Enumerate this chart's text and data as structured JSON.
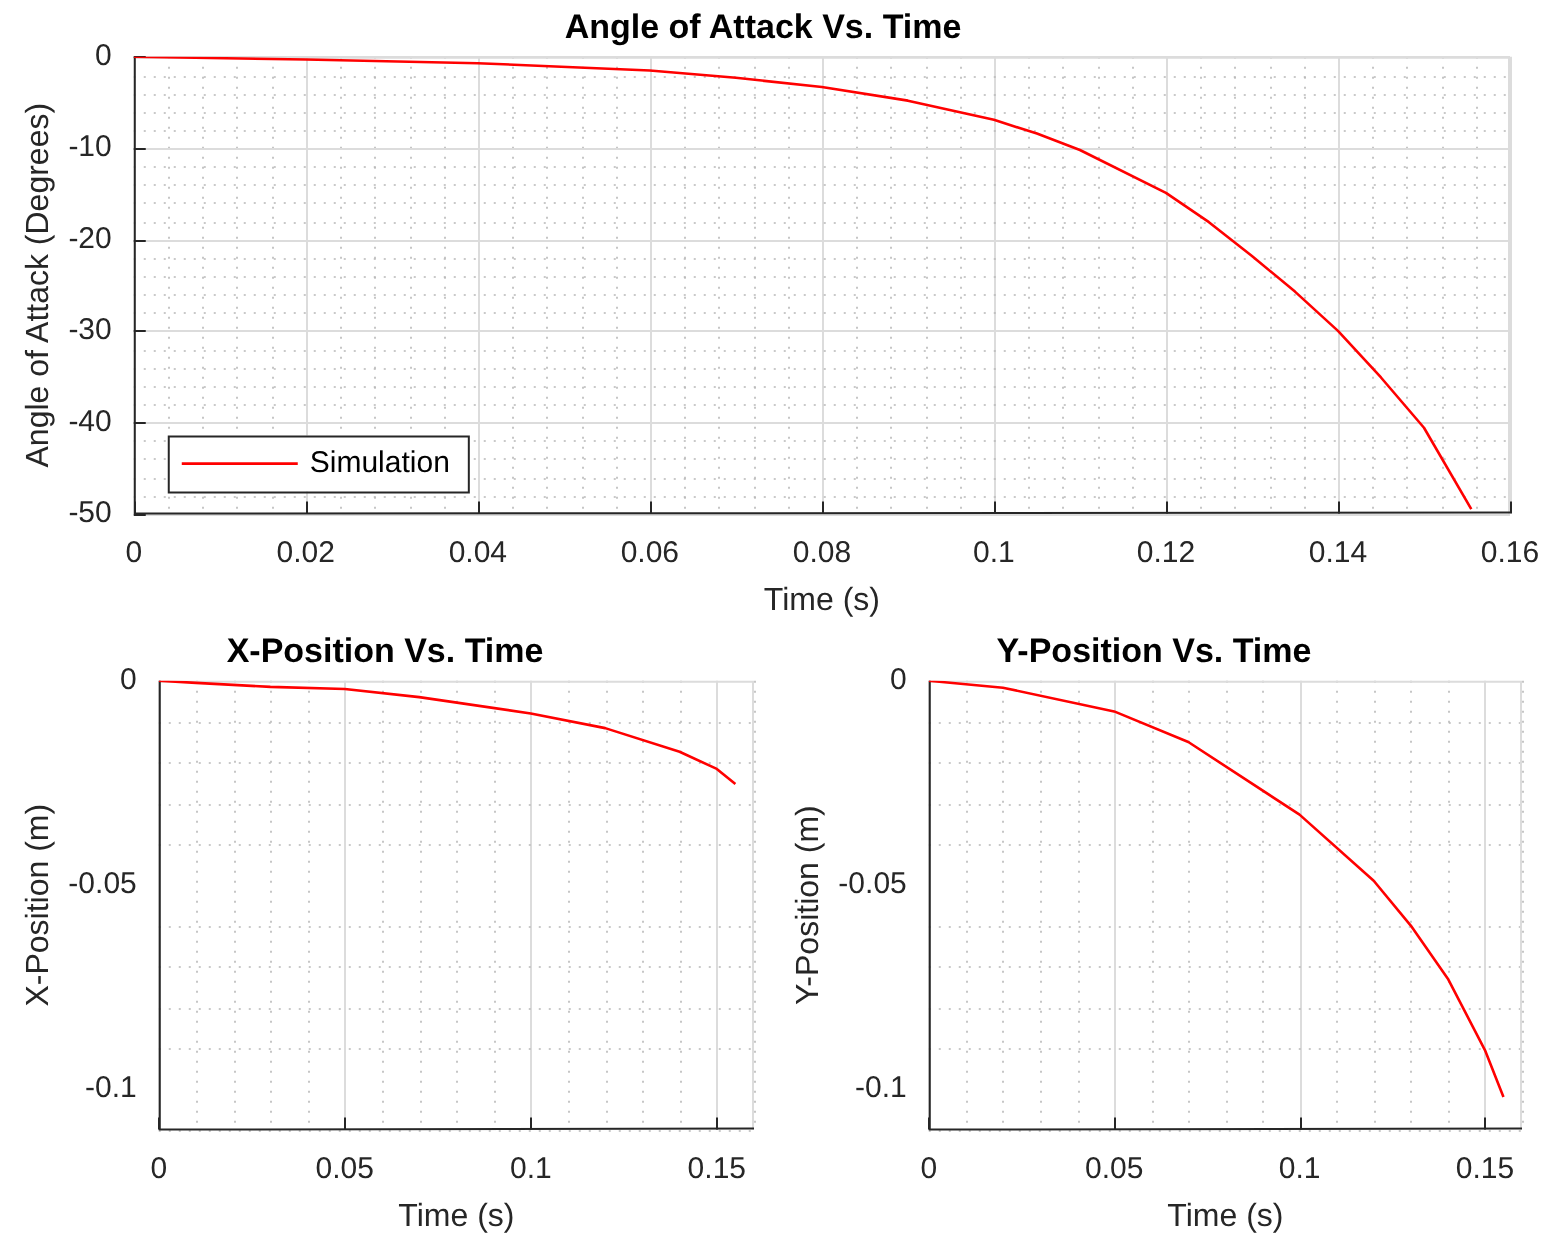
{
  "chart_data": [
    {
      "type": "line",
      "title": "Angle of Attack Vs. Time",
      "xlabel": "Time (s)",
      "ylabel": "Angle of Attack (Degrees)",
      "legend": "bottom left",
      "grid": true,
      "line_style": "solid",
      "marker": "none",
      "series": [
        {
          "name": "Simulation",
          "color": "#ff0000",
          "x": [
            0,
            0.02,
            0.04,
            0.06,
            0.07,
            0.08,
            0.09,
            0.1,
            0.105,
            0.11,
            0.12,
            0.125,
            0.13,
            0.135,
            0.14,
            0.145,
            0.15,
            0.1555
          ],
          "values": [
            0,
            -0.3,
            -0.7,
            -1.5,
            -2.3,
            -3.3,
            -4.8,
            -6.9,
            -8.4,
            -10.2,
            -14.9,
            -18.1,
            -21.8,
            -25.7,
            -30,
            -35.1,
            -40.6,
            -49.5
          ]
        }
      ],
      "xlim": [
        0,
        0.16
      ],
      "ylim": [
        -50,
        0
      ],
      "xticks": [
        0,
        {
          "value": 0.004,
          "label": null
        },
        {
          "value": 0.008,
          "label": null
        },
        {
          "value": 0.012,
          "label": null
        },
        {
          "value": 0.016,
          "label": null
        },
        0.02,
        {
          "value": 0.024,
          "label": null
        },
        {
          "value": 0.028,
          "label": null
        },
        {
          "value": 0.032,
          "label": null
        },
        {
          "value": 0.036,
          "label": null
        },
        0.04,
        {
          "value": 0.044,
          "label": null
        },
        {
          "value": 0.048,
          "label": null
        },
        {
          "value": 0.052,
          "label": null
        },
        {
          "value": 0.056,
          "label": null
        },
        0.06,
        {
          "value": 0.064,
          "label": null
        },
        {
          "value": 0.068,
          "label": null
        },
        {
          "value": 0.072,
          "label": null
        },
        {
          "value": 0.076,
          "label": null
        },
        0.08,
        {
          "value": 0.084,
          "label": null
        },
        {
          "value": 0.088,
          "label": null
        },
        {
          "value": 0.092,
          "label": null
        },
        {
          "value": 0.096,
          "label": null
        },
        0.1,
        {
          "value": 0.104,
          "label": null
        },
        {
          "value": 0.108,
          "label": null
        },
        {
          "value": 0.112,
          "label": null
        },
        {
          "value": 0.116,
          "label": null
        },
        0.12,
        {
          "value": 0.124,
          "label": null
        },
        {
          "value": 0.128,
          "label": null
        },
        {
          "value": 0.132,
          "label": null
        },
        {
          "value": 0.136,
          "label": null
        },
        0.14,
        {
          "value": 0.144,
          "label": null
        },
        {
          "value": 0.148,
          "label": null
        },
        {
          "value": 0.152,
          "label": null
        },
        {
          "value": 0.156,
          "label": null
        },
        0.16
      ],
      "yticks": [
        -50,
        {
          "value": -48,
          "label": null
        },
        {
          "value": -46,
          "label": null
        },
        {
          "value": -44,
          "label": null
        },
        {
          "value": -42,
          "label": null
        },
        -40,
        {
          "value": -38,
          "label": null
        },
        {
          "value": -36,
          "label": null
        },
        {
          "value": -34,
          "label": null
        },
        {
          "value": -32,
          "label": null
        },
        -30,
        {
          "value": -28,
          "label": null
        },
        {
          "value": -26,
          "label": null
        },
        {
          "value": -24,
          "label": null
        },
        {
          "value": -22,
          "label": null
        },
        -20,
        {
          "value": -18,
          "label": null
        },
        {
          "value": -16,
          "label": null
        },
        {
          "value": -14,
          "label": null
        },
        {
          "value": -12,
          "label": null
        },
        -10,
        {
          "value": -8,
          "label": null
        },
        {
          "value": -6,
          "label": null
        },
        {
          "value": -4,
          "label": null
        },
        {
          "value": -2,
          "label": null
        },
        0
      ]
    },
    {
      "type": "line",
      "title": "X-Position Vs. Time",
      "xlabel": "Time (s)",
      "ylabel": "X-Position (m)",
      "grid": true,
      "line_style": "solid",
      "marker": "none",
      "series": [
        {
          "color": "#ff0000",
          "x": [
            0,
            0.01,
            0.03,
            0.05,
            0.07,
            0.1,
            0.12,
            0.14,
            0.15,
            0.155
          ],
          "values": [
            0,
            -0.0005,
            -0.0015,
            -0.002,
            -0.004,
            -0.008,
            -0.0116,
            -0.0174,
            -0.0216,
            -0.0253
          ]
        }
      ],
      "xlim": [
        0,
        0.16
      ],
      "ylim": [
        -0.11,
        0
      ],
      "xticks": [
        0,
        {
          "value": 0.01,
          "label": null
        },
        {
          "value": 0.02,
          "label": null
        },
        {
          "value": 0.03,
          "label": null
        },
        {
          "value": 0.04,
          "label": null
        },
        0.05,
        {
          "value": 0.06,
          "label": null
        },
        {
          "value": 0.07,
          "label": null
        },
        {
          "value": 0.08,
          "label": null
        },
        {
          "value": 0.09,
          "label": null
        },
        0.1,
        {
          "value": 0.11,
          "label": null
        },
        {
          "value": 0.12,
          "label": null
        },
        {
          "value": 0.13,
          "label": null
        },
        {
          "value": 0.14,
          "label": null
        },
        0.15,
        {
          "value": 0.16,
          "label": null
        }
      ],
      "yticks": [
        {
          "value": -0.11,
          "label": null
        },
        -0.1,
        {
          "value": -0.09,
          "label": null
        },
        {
          "value": -0.08,
          "label": null
        },
        {
          "value": -0.07,
          "label": null
        },
        {
          "value": -0.06,
          "label": null
        },
        -0.05,
        {
          "value": -0.04,
          "label": null
        },
        {
          "value": -0.03,
          "label": null
        },
        {
          "value": -0.02,
          "label": null
        },
        {
          "value": -0.01,
          "label": null
        },
        0
      ]
    },
    {
      "type": "line",
      "title": "Y-Position Vs. Time",
      "xlabel": "Time (s)",
      "ylabel": "Y-Position (m)",
      "grid": true,
      "line_style": "solid",
      "marker": "none",
      "series": [
        {
          "color": "#ff0000",
          "x": [
            0,
            0.02,
            0.05,
            0.07,
            0.1,
            0.12,
            0.13,
            0.14,
            0.15,
            0.155
          ],
          "values": [
            0,
            -0.0017,
            -0.0075,
            -0.015,
            -0.0328,
            -0.049,
            -0.06,
            -0.073,
            -0.0905,
            -0.102
          ]
        }
      ],
      "xlim": [
        0,
        0.16
      ],
      "ylim": [
        -0.11,
        0
      ],
      "xticks": [
        0,
        {
          "value": 0.01,
          "label": null
        },
        {
          "value": 0.02,
          "label": null
        },
        {
          "value": 0.03,
          "label": null
        },
        {
          "value": 0.04,
          "label": null
        },
        0.05,
        {
          "value": 0.06,
          "label": null
        },
        {
          "value": 0.07,
          "label": null
        },
        {
          "value": 0.08,
          "label": null
        },
        {
          "value": 0.09,
          "label": null
        },
        0.1,
        {
          "value": 0.11,
          "label": null
        },
        {
          "value": 0.12,
          "label": null
        },
        {
          "value": 0.13,
          "label": null
        },
        {
          "value": 0.14,
          "label": null
        },
        0.15,
        {
          "value": 0.16,
          "label": null
        }
      ],
      "yticks": [
        {
          "value": -0.11,
          "label": null
        },
        -0.1,
        {
          "value": -0.09,
          "label": null
        },
        {
          "value": -0.08,
          "label": null
        },
        {
          "value": -0.07,
          "label": null
        },
        {
          "value": -0.06,
          "label": null
        },
        -0.05,
        {
          "value": -0.04,
          "label": null
        },
        {
          "value": -0.03,
          "label": null
        },
        {
          "value": -0.02,
          "label": null
        },
        {
          "value": -0.01,
          "label": null
        },
        0
      ]
    }
  ]
}
